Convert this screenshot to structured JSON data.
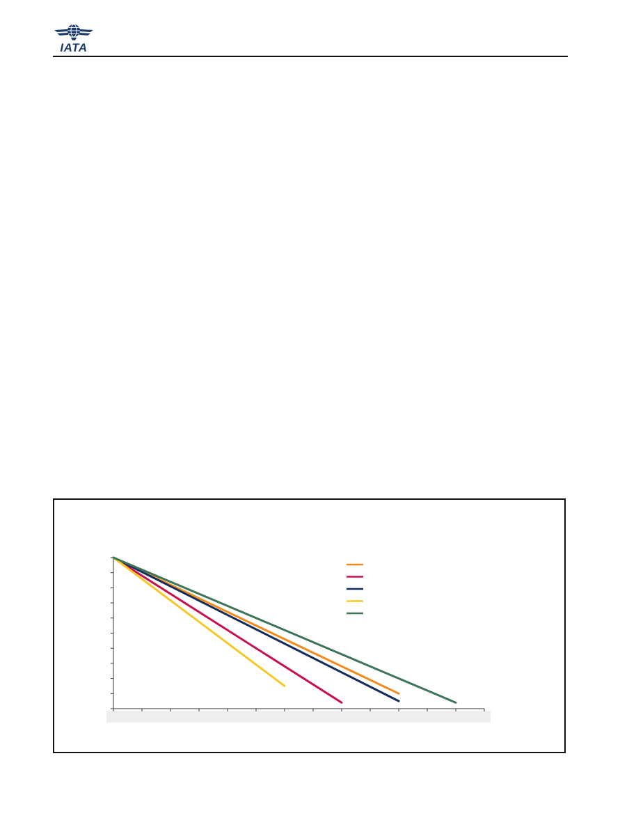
{
  "header": {
    "logo_text": "IATA"
  },
  "chart_data": {
    "type": "line",
    "title": "",
    "xlabel": "",
    "ylabel": "",
    "xlim": [
      0,
      13
    ],
    "ylim": [
      0,
      10
    ],
    "grid": false,
    "legend_position": "top-right",
    "series": [
      {
        "color": "#f28a1c",
        "x": [
          0,
          10
        ],
        "y": [
          10,
          1.0
        ]
      },
      {
        "color": "#c8104a",
        "x": [
          0,
          8
        ],
        "y": [
          10,
          0.4
        ]
      },
      {
        "color": "#0f2c5c",
        "x": [
          0,
          10
        ],
        "y": [
          10,
          0.5
        ]
      },
      {
        "color": "#f7c829",
        "x": [
          0,
          6
        ],
        "y": [
          10,
          1.5
        ]
      },
      {
        "color": "#3d7356",
        "x": [
          0,
          12
        ],
        "y": [
          10,
          0.4
        ]
      }
    ]
  }
}
